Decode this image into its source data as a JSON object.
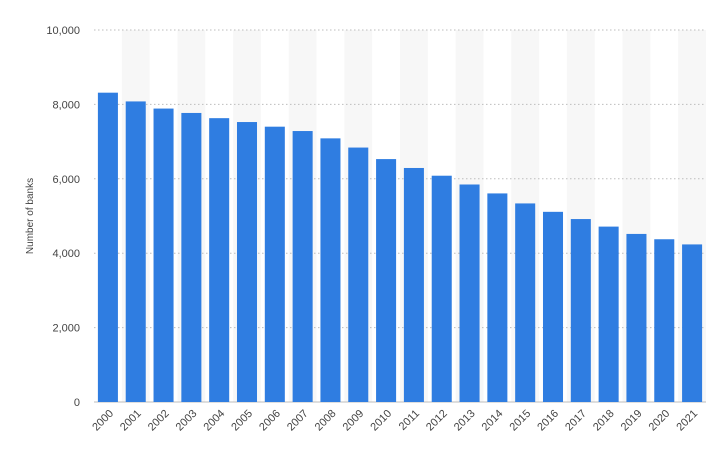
{
  "chart_data": {
    "type": "bar",
    "title": "",
    "xlabel": "",
    "ylabel": "Number of banks",
    "ylim": [
      0,
      10000
    ],
    "yticks": [
      0,
      2000,
      4000,
      6000,
      8000,
      10000
    ],
    "grid": true,
    "bar_color": "#2f7de1",
    "categories": [
      "2000",
      "2001",
      "2002",
      "2003",
      "2004",
      "2005",
      "2006",
      "2007",
      "2008",
      "2009",
      "2010",
      "2011",
      "2012",
      "2013",
      "2014",
      "2015",
      "2016",
      "2017",
      "2018",
      "2019",
      "2020",
      "2021"
    ],
    "values": [
      8315,
      8080,
      7888,
      7770,
      7630,
      7526,
      7401,
      7284,
      7087,
      6840,
      6530,
      6291,
      6083,
      5847,
      5607,
      5338,
      5112,
      4918,
      4715,
      4518,
      4375,
      4236
    ]
  }
}
